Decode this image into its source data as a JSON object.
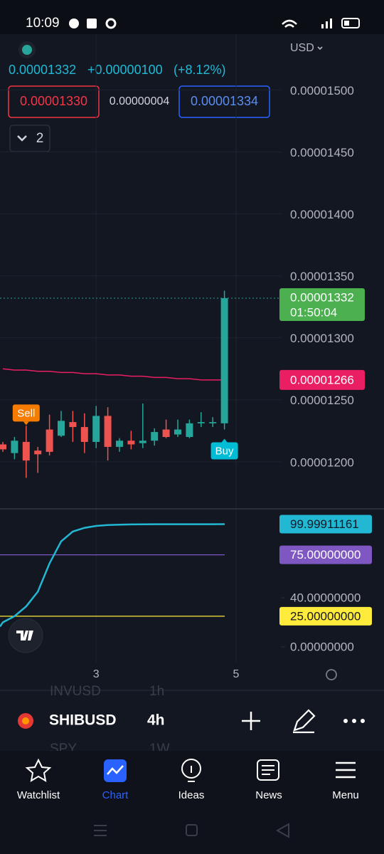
{
  "status_bar": {
    "time": "10:09"
  },
  "header": {
    "currency": "USD",
    "last_price": "0.00001332",
    "change": "+0.00000100",
    "change_percent": "(+8.12%)",
    "bid": "0.00001330",
    "spread": "0.00000004",
    "ask": "0.00001334",
    "indicator_count": "2"
  },
  "chart_data": [
    {
      "type": "candlestick",
      "up_color": "#26a69a",
      "down_color": "#ef5350",
      "open": [
        1.214e-05,
        1.207e-05,
        1.216e-05,
        1.209e-05,
        1.226e-05,
        1.221e-05,
        1.232e-05,
        1.228e-05,
        1.216e-05,
        1.237e-05,
        1.212e-05,
        1.217e-05,
        1.215e-05,
        1.217e-05,
        1.226e-05,
        1.222e-05,
        1.22e-05,
        1.231e-05,
        1.231e-05,
        1.231e-05
      ],
      "high": [
        1.216e-05,
        1.22e-05,
        1.229e-05,
        1.212e-05,
        1.238e-05,
        1.241e-05,
        1.241e-05,
        1.239e-05,
        1.245e-05,
        1.244e-05,
        1.219e-05,
        1.225e-05,
        1.247e-05,
        1.227e-05,
        1.234e-05,
        1.234e-05,
        1.234e-05,
        1.24e-05,
        1.236e-05,
        1.338e-05
      ],
      "low": [
        1.208e-05,
        1.202e-05,
        1.187e-05,
        1.191e-05,
        1.205e-05,
        1.22e-05,
        1.216e-05,
        1.207e-05,
        1.211e-05,
        1.201e-05,
        1.208e-05,
        1.21e-05,
        1.211e-05,
        1.213e-05,
        1.219e-05,
        1.22e-05,
        1.219e-05,
        1.228e-05,
        1.228e-05,
        1.226e-05
      ],
      "close": [
        1.21e-05,
        1.217e-05,
        1.201e-05,
        1.206e-05,
        1.208e-05,
        1.233e-05,
        1.228e-05,
        1.216e-05,
        1.237e-05,
        1.212e-05,
        1.217e-05,
        1.214e-05,
        1.217e-05,
        1.224e-05,
        1.22e-05,
        1.226e-05,
        1.231e-05,
        1.232e-05,
        1.232e-05,
        1.332e-05
      ],
      "moving_average": {
        "color": "#e91e63",
        "values": [
          1.275e-05,
          1.274e-05,
          1.274e-05,
          1.273e-05,
          1.273e-05,
          1.272e-05,
          1.272e-05,
          1.271e-05,
          1.271e-05,
          1.27e-05,
          1.27e-05,
          1.269e-05,
          1.269e-05,
          1.268e-05,
          1.268e-05,
          1.267e-05,
          1.267e-05,
          1.266e-05,
          1.266e-05,
          1.266e-05
        ],
        "value_label": {
          "value": 1.266e-05,
          "label": "0.00001266"
        }
      },
      "last_price": {
        "value": 1.332e-05,
        "label": "0.00001332",
        "countdown": "01:50:04"
      },
      "annotations": [
        "Sell",
        "Buy"
      ],
      "ylim": [
        1.162e-05,
        1.545e-05
      ],
      "yticks": [
        {
          "value": 1.5e-05,
          "label": "0.00001500"
        },
        {
          "value": 1.45e-05,
          "label": "0.00001450"
        },
        {
          "value": 1.4e-05,
          "label": "0.00001400"
        },
        {
          "value": 1.35e-05,
          "label": "0.00001350"
        },
        {
          "value": 1.3e-05,
          "label": "0.00001300"
        },
        {
          "value": 1.25e-05,
          "label": "0.00001250"
        },
        {
          "value": 1.2e-05,
          "label": "0.00001200"
        }
      ],
      "grid": true
    },
    {
      "type": "line",
      "color": "#22b8d4",
      "values": [
        20,
        25,
        33,
        45,
        68,
        86,
        94,
        97,
        98.6,
        99.3,
        99.6,
        99.8,
        99.9,
        99.95,
        99.97,
        99.98,
        99.99,
        99.99,
        99.99,
        99.99911161
      ],
      "value_label": "99.99911161",
      "levels": [
        {
          "value": 75,
          "label": "75.00000000",
          "color": "#7e57c2"
        },
        {
          "value": 25,
          "label": "25.00000000",
          "color": "#ffeb3b"
        }
      ],
      "ylim": [
        -12.2,
        112.5
      ],
      "yticks": [
        {
          "value": 40,
          "label": "40.00000000"
        },
        {
          "value": 0,
          "label": "0.00000000"
        }
      ]
    }
  ],
  "time_axis": {
    "labels": [
      "3",
      "5"
    ]
  },
  "symbol_bar": {
    "symbol": "SHIBUSD",
    "interval": "4h",
    "behind": [
      {
        "symbol": "INVUSD",
        "interval": "1h"
      },
      {
        "symbol": "SPY",
        "interval": "1W"
      }
    ]
  },
  "nav": [
    "Watchlist",
    "Chart",
    "Ideas",
    "News",
    "Menu"
  ]
}
